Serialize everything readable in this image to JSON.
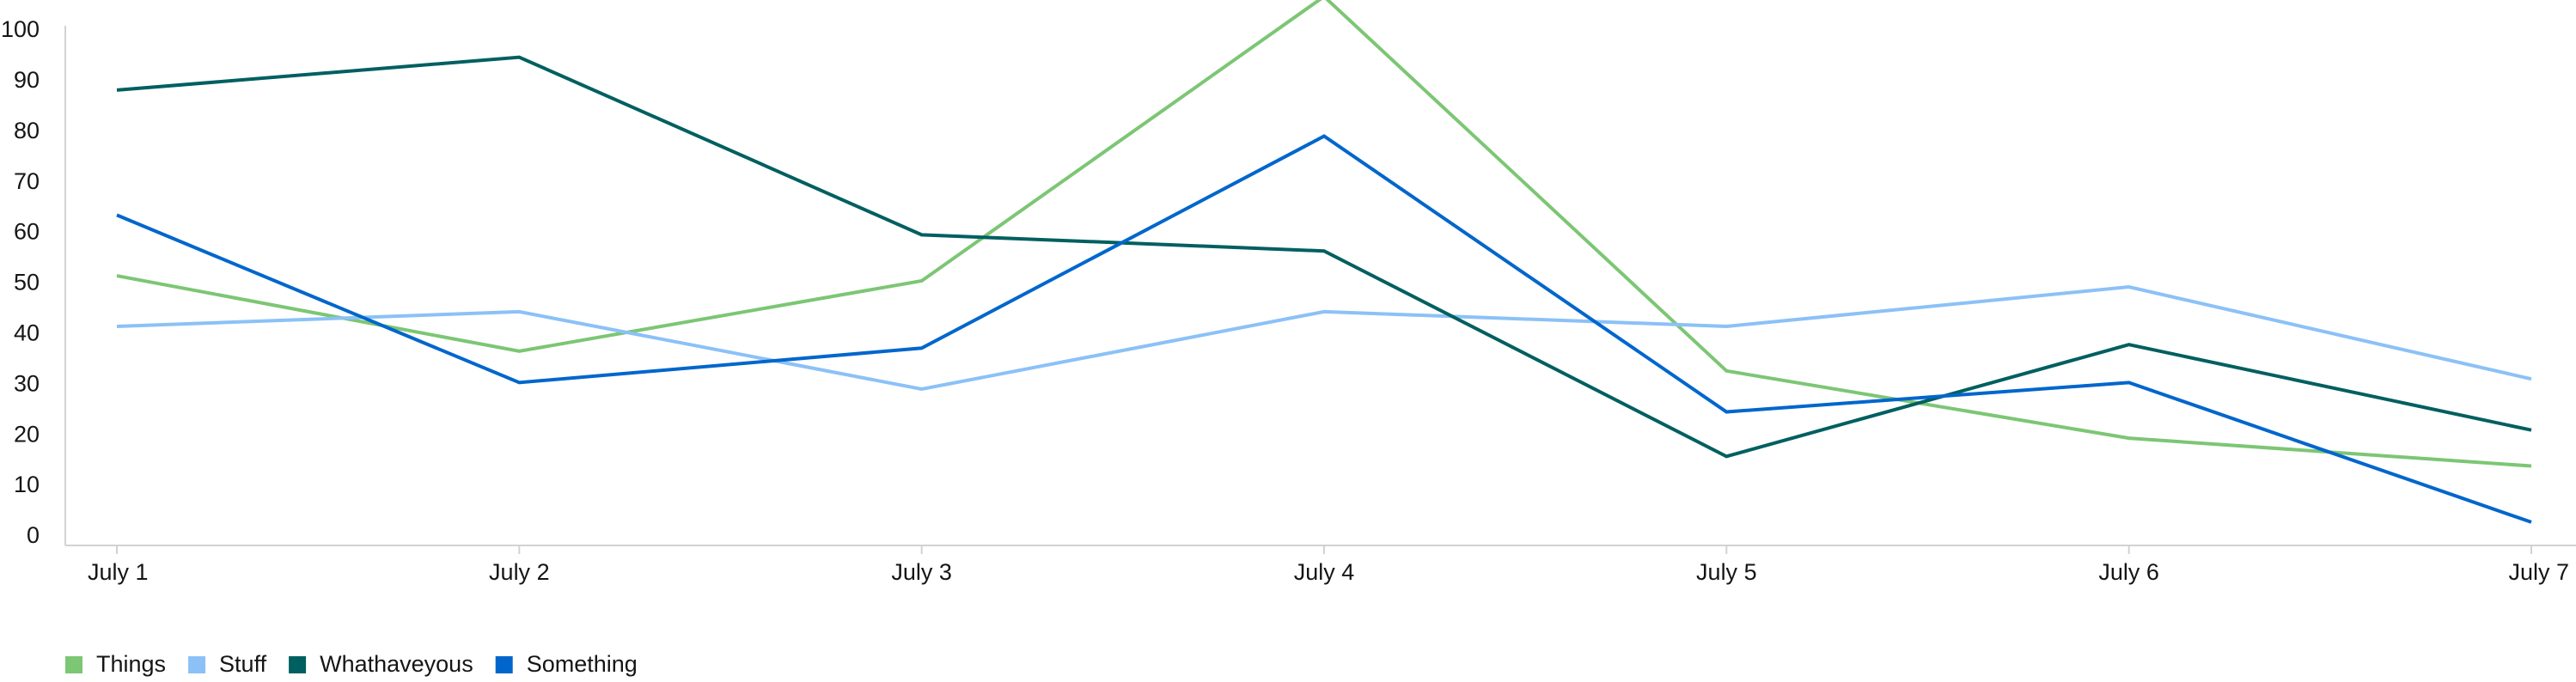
{
  "chart_data": {
    "type": "line",
    "categories": [
      "July 1",
      "July 2",
      "July 3",
      "July 4",
      "July 5",
      "July 6",
      "July 7"
    ],
    "series": [
      {
        "name": "Things",
        "color": "#7cc674",
        "values": [
          51.6,
          36.7,
          50.6,
          106.8,
          32.8,
          19.5,
          14
        ]
      },
      {
        "name": "Stuff",
        "color": "#8bc1f7",
        "values": [
          41.6,
          44.5,
          29.2,
          44.5,
          41.6,
          49.4,
          31.2
        ]
      },
      {
        "name": "Whathaveyous",
        "color": "#005f60",
        "values": [
          88.3,
          94.8,
          59.7,
          56.5,
          15.9,
          38,
          21.1
        ]
      },
      {
        "name": "Something",
        "color": "#06c",
        "values": [
          63.6,
          30.5,
          37.3,
          79.2,
          24.7,
          30.5,
          2.9
        ]
      }
    ],
    "ylim": [
      0,
      100
    ],
    "yticks": [
      0,
      10,
      20,
      30,
      40,
      50,
      60,
      70,
      80,
      90,
      100
    ],
    "grid": false,
    "legend": "bottom-left"
  }
}
